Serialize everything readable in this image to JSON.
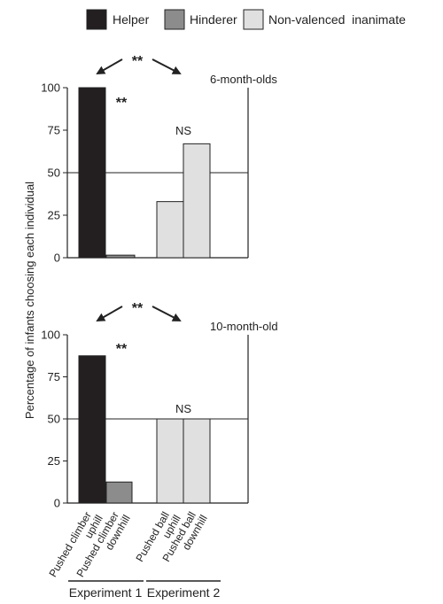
{
  "chart_data": [
    {
      "type": "bar",
      "title": "6-month-olds",
      "ylabel": "Percentage of infants choosing each individual",
      "ylim": [
        0,
        100
      ],
      "yticks": [
        0,
        25,
        50,
        75,
        100
      ],
      "grid": false,
      "categories": [
        "Helper",
        "Hinderer",
        "Non-valenced inanimate",
        "Non-valenced inanimate"
      ],
      "values": [
        100,
        1.5,
        33,
        67
      ],
      "annotations": [
        "**",
        "**",
        "NS"
      ]
    },
    {
      "type": "bar",
      "title": "10-month-old",
      "ylabel": "Percentage of infants choosing each individual",
      "ylim": [
        0,
        100
      ],
      "yticks": [
        0,
        25,
        50,
        75,
        100
      ],
      "grid": false,
      "categories": [
        "Helper",
        "Hinderer",
        "Non-valenced inanimate",
        "Non-valenced inanimate"
      ],
      "values": [
        87.5,
        12.5,
        50,
        50
      ],
      "annotations": [
        "**",
        "**",
        "NS"
      ]
    }
  ],
  "legend": {
    "items": [
      {
        "label": "Helper",
        "color": "#231f20"
      },
      {
        "label": "Hinderer",
        "color": "#8c8c8c"
      },
      {
        "label": "Non-valenced  inanimate",
        "color": "#e0e0e0"
      }
    ],
    "position": "top"
  },
  "ylabel": "Percentage of infants choosing each individual",
  "panels": [
    {
      "title": "6-month-olds",
      "sig_top": "**",
      "sig_helper": "**",
      "sig_exp2": "NS"
    },
    {
      "title": "10-month-old",
      "sig_top": "**",
      "sig_helper": "**",
      "sig_exp2": "NS"
    }
  ],
  "xtick_labels": [
    [
      "Pushed climber",
      "uphill"
    ],
    [
      "Pushed climber",
      "downhill"
    ],
    [
      "Pushed ball",
      "uphill"
    ],
    [
      "Pushed ball",
      "downhill"
    ]
  ],
  "experiments": [
    "Experiment 1",
    "Experiment 2"
  ]
}
